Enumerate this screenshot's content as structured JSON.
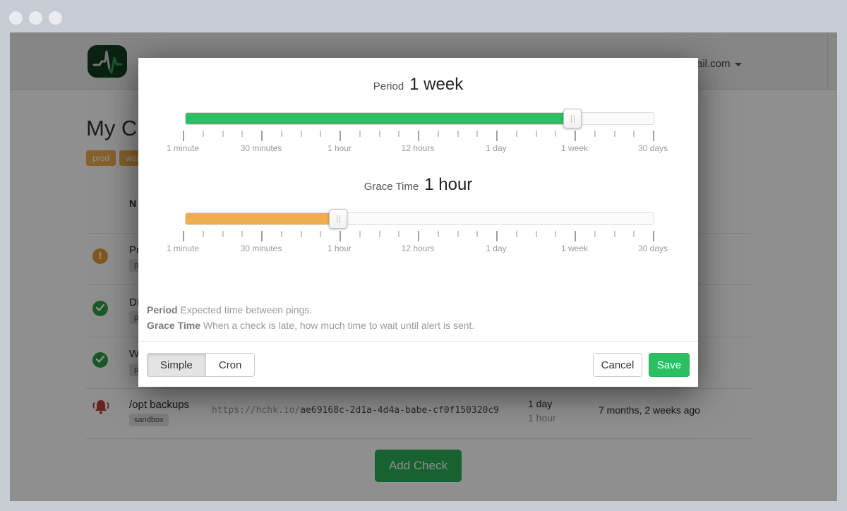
{
  "colors": {
    "accent_green": "#2dbe64",
    "accent_orange": "#f0ad4e",
    "save_green": "#2cbf62",
    "add_check_green": "#2bad57",
    "status_up_green": "#2fa14c",
    "status_late_amber": "#e49c37",
    "alert_red": "#b8403c",
    "logo_green": "#133d20"
  },
  "page": {
    "account_fragment": "ail.com",
    "title_fragment": "My C",
    "title_tags": [
      "prod",
      "work"
    ],
    "table": {
      "name_header_fragment": "N",
      "rows": [
        {
          "status": "late",
          "name_fragment": "Pr",
          "tag_fragment": "pr"
        },
        {
          "status": "up",
          "name_fragment": "DB",
          "tag_fragment": "pr"
        },
        {
          "status": "up",
          "name_fragment": "We",
          "tag_fragment": "pr"
        },
        {
          "status": "alert",
          "name_fragment": "/opt backups",
          "tag_fragment": "sandbox",
          "url_host": "https://hchk.io/",
          "url_code": "ae69168c-2d1a-4d4a-babe-cf0f150320c9",
          "period": "1 day",
          "grace": "1 hour",
          "last_ping": "7 months, 2 weeks ago"
        }
      ]
    },
    "add_check_label": "Add Check"
  },
  "modal": {
    "period": {
      "label": "Period",
      "value": "1 week",
      "fill_pct": 82.7
    },
    "grace": {
      "label": "Grace Time",
      "value": "1 hour",
      "fill_pct": 32.6
    },
    "tick_labels": [
      "1 minute",
      "30 minutes",
      "1 hour",
      "12 hours",
      "1 day",
      "1 week",
      "30 days"
    ],
    "help": [
      {
        "term": "Period",
        "text": " Expected time between pings."
      },
      {
        "term": "Grace Time",
        "text": " When a check is late, how much time to wait until alert is sent."
      }
    ],
    "footer": {
      "simple_label": "Simple",
      "cron_label": "Cron",
      "cancel_label": "Cancel",
      "save_label": "Save"
    }
  }
}
